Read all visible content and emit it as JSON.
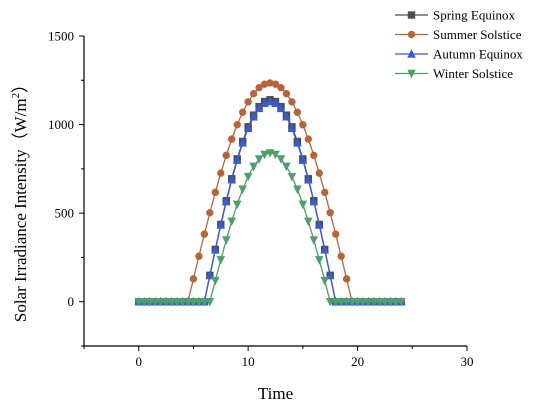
{
  "chart_data": {
    "type": "line",
    "xlabel": "Time",
    "ylabel": "Solar Irradiance Intensity（W/m",
    "ylabel_sup": "2",
    "ylabel_close": "）",
    "xlim": [
      -5,
      30
    ],
    "ylim": [
      -250,
      1500
    ],
    "xticks": [
      0,
      10,
      20,
      30
    ],
    "yticks": [
      0,
      500,
      1000,
      1500
    ],
    "xtick_labels": [
      "0",
      "10",
      "20",
      "30"
    ],
    "ytick_labels": [
      "0",
      "500",
      "1000",
      "1500"
    ],
    "grid": false,
    "legend_position": "top-right",
    "x_start": 0,
    "x_step": 0.5,
    "series": [
      {
        "name": "Spring Equinox",
        "marker": "square",
        "color": "#4d4d4d",
        "sunrise": 6,
        "sunset": 18,
        "peak": 1140
      },
      {
        "name": "Summer Solstice",
        "marker": "circle",
        "color": "#b5653c",
        "sunrise": 4.5,
        "sunset": 19.5,
        "peak": 1235
      },
      {
        "name": "Autumn Equinox",
        "marker": "triangle-up",
        "color": "#3a5bd6",
        "sunrise": 6,
        "sunset": 18,
        "peak": 1130
      },
      {
        "name": "Winter Solstice",
        "marker": "triangle-down",
        "color": "#4f9f6e",
        "sunrise": 6.5,
        "sunset": 17.5,
        "peak": 840
      }
    ]
  }
}
